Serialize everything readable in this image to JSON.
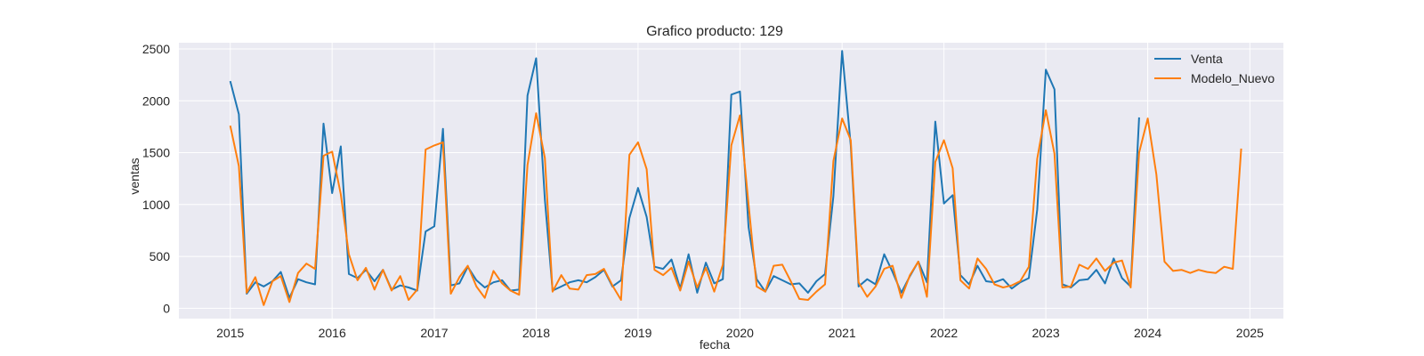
{
  "chart_data": {
    "type": "line",
    "title": "Grafico producto: 129",
    "xlabel": "fecha",
    "ylabel": "ventas",
    "ylim": [
      -100,
      2560
    ],
    "xlim": [
      "2014-07-01",
      "2025-05-01"
    ],
    "x_ticks": [
      "2015",
      "2016",
      "2017",
      "2018",
      "2019",
      "2020",
      "2021",
      "2022",
      "2023",
      "2024",
      "2025"
    ],
    "y_ticks": [
      "0",
      "500",
      "1000",
      "1500",
      "2000",
      "2500"
    ],
    "grid": true,
    "legend_position": "top-right",
    "colors": {
      "background": "#eaeaf2",
      "grid": "#ffffff",
      "venta": "#1f77b4",
      "modelo": "#ff7f0e"
    },
    "series": [
      {
        "name": "Venta",
        "start": "2015-01",
        "values": [
          2190,
          1870,
          140,
          250,
          210,
          260,
          350,
          100,
          280,
          250,
          230,
          1780,
          1110,
          1560,
          330,
          290,
          370,
          260,
          370,
          180,
          220,
          200,
          170,
          740,
          790,
          1730,
          220,
          240,
          400,
          270,
          200,
          250,
          270,
          170,
          180,
          2050,
          2410,
          1050,
          170,
          210,
          250,
          270,
          250,
          300,
          370,
          210,
          270,
          870,
          1160,
          880,
          400,
          380,
          470,
          190,
          520,
          150,
          440,
          240,
          280,
          2060,
          2090,
          780,
          280,
          160,
          310,
          270,
          230,
          240,
          150,
          260,
          330,
          1080,
          2480,
          1570,
          210,
          280,
          230,
          520,
          350,
          150,
          310,
          450,
          250,
          1800,
          1010,
          1090,
          320,
          230,
          410,
          260,
          250,
          280,
          190,
          250,
          290,
          950,
          2300,
          2110,
          230,
          200,
          270,
          280,
          370,
          240,
          480,
          290,
          210,
          1840
        ]
      },
      {
        "name": "Modelo_Nuevo",
        "start": "2015-01",
        "values": [
          1760,
          1370,
          150,
          300,
          30,
          260,
          310,
          60,
          340,
          430,
          380,
          1470,
          1510,
          1100,
          520,
          270,
          390,
          180,
          370,
          170,
          310,
          80,
          180,
          1530,
          1570,
          1600,
          140,
          300,
          410,
          210,
          100,
          360,
          240,
          170,
          130,
          1380,
          1880,
          1450,
          160,
          320,
          190,
          180,
          320,
          330,
          380,
          220,
          80,
          1480,
          1600,
          1340,
          370,
          320,
          390,
          170,
          450,
          200,
          390,
          160,
          420,
          1570,
          1860,
          1000,
          210,
          160,
          410,
          420,
          260,
          90,
          80,
          160,
          230,
          1420,
          1830,
          1620,
          250,
          110,
          210,
          380,
          410,
          100,
          320,
          450,
          110,
          1410,
          1620,
          1350,
          270,
          190,
          480,
          380,
          230,
          200,
          220,
          260,
          400,
          1440,
          1910,
          1490,
          200,
          210,
          420,
          380,
          480,
          360,
          440,
          460,
          200,
          1500,
          1830,
          1290,
          450,
          360,
          370,
          340,
          370,
          350,
          340,
          400,
          380,
          1540
        ]
      }
    ]
  }
}
